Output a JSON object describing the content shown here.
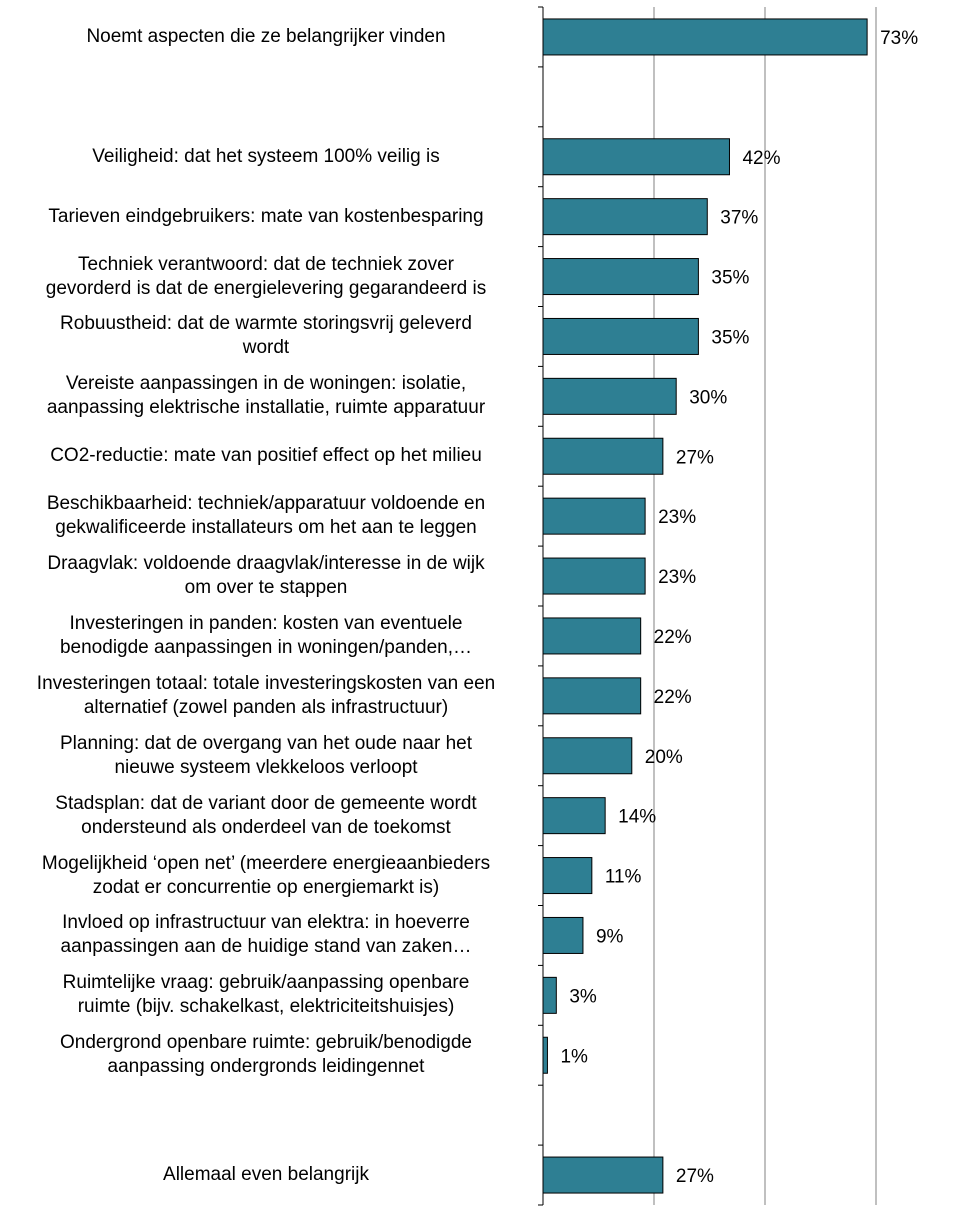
{
  "chart_data": {
    "type": "bar",
    "orientation": "horizontal",
    "xlim": [
      0,
      100
    ],
    "grid": true,
    "bar_color": "#2e7f93",
    "categories": [
      "Noemt aspecten die ze belangrijker vinden",
      "",
      "Veiligheid: dat het systeem 100% veilig is",
      "Tarieven eindgebruikers: mate van kostenbesparing",
      "Techniek verantwoord: dat de techniek zover gevorderd is dat de energielevering gegarandeerd is",
      "Robuustheid: dat de warmte storingsvrij geleverd wordt",
      "Vereiste aanpassingen in de woningen: isolatie, aanpassing elektrische installatie, ruimte apparatuur",
      "CO2-reductie: mate van positief effect op het milieu",
      "Beschikbaarheid:  techniek/apparatuur voldoende en gekwalificeerde installateurs om het aan te leggen",
      "Draagvlak: voldoende draagvlak/interesse in de wijk om over te stappen",
      "Investeringen in panden: kosten van eventuele benodigde aanpassingen in woningen/panden,…",
      "Investeringen totaal: totale investeringskosten van een alternatief (zowel panden als infrastructuur)",
      "Planning: dat de overgang van het oude naar het nieuwe systeem vlekkeloos verloopt",
      "Stadsplan: dat de variant door de gemeente wordt ondersteund als onderdeel van de toekomst",
      "Mogelijkheid ‘open net’ (meerdere energieaanbieders zodat er concurrentie op energiemarkt is)",
      "Invloed op infrastructuur van elektra: in hoeverre aanpassingen aan de huidige stand van zaken…",
      "Ruimtelijke vraag: gebruik/aanpassing openbare ruimte (bijv. schakelkast, elektriciteitshuisjes)",
      "Ondergrond openbare ruimte: gebruik/benodigde aanpassing ondergronds leidingennet",
      "",
      "Allemaal even belangrijk"
    ],
    "label_lines": [
      [
        "Noemt aspecten die ze belangrijker vinden"
      ],
      [],
      [
        "Veiligheid: dat het systeem 100% veilig is"
      ],
      [
        "Tarieven eindgebruikers: mate van kostenbesparing"
      ],
      [
        "Techniek verantwoord: dat de techniek zover",
        "gevorderd is dat de energielevering gegarandeerd is"
      ],
      [
        "Robuustheid: dat de warmte storingsvrij geleverd",
        "wordt"
      ],
      [
        "Vereiste aanpassingen in de woningen: isolatie,",
        "aanpassing elektrische installatie, ruimte apparatuur"
      ],
      [
        "CO2-reductie: mate van positief effect op het milieu"
      ],
      [
        "Beschikbaarheid:  techniek/apparatuur voldoende en",
        "gekwalificeerde installateurs om het aan te leggen"
      ],
      [
        "Draagvlak: voldoende draagvlak/interesse in de wijk",
        "om over te stappen"
      ],
      [
        "Investeringen in panden: kosten van eventuele",
        "benodigde aanpassingen in woningen/panden,…"
      ],
      [
        "Investeringen totaal: totale investeringskosten van een",
        "alternatief (zowel panden als infrastructuur)"
      ],
      [
        "Planning: dat de overgang van het oude naar het",
        "nieuwe systeem vlekkeloos verloopt"
      ],
      [
        "Stadsplan: dat de variant door de gemeente wordt",
        "ondersteund als onderdeel van de toekomst"
      ],
      [
        "Mogelijkheid ‘open net’ (meerdere energieaanbieders",
        "zodat er concurrentie op energiemarkt is)"
      ],
      [
        "Invloed op infrastructuur van elektra: in hoeverre",
        "aanpassingen aan de huidige stand van zaken…"
      ],
      [
        "Ruimtelijke vraag: gebruik/aanpassing openbare",
        "ruimte (bijv. schakelkast, elektriciteitshuisjes)"
      ],
      [
        "Ondergrond openbare ruimte: gebruik/benodigde",
        "aanpassing ondergronds leidingennet"
      ],
      [],
      [
        "Allemaal even belangrijk"
      ]
    ],
    "values": [
      73,
      null,
      42,
      37,
      35,
      35,
      30,
      27,
      23,
      23,
      22,
      22,
      20,
      14,
      11,
      9,
      3,
      1,
      null,
      27
    ],
    "data_labels": [
      "73%",
      "",
      "42%",
      "37%",
      "35%",
      "35%",
      "30%",
      "27%",
      "23%",
      "23%",
      "22%",
      "22%",
      "20%",
      "14%",
      "11%",
      "9%",
      "3%",
      "1%",
      "",
      "27%"
    ]
  }
}
